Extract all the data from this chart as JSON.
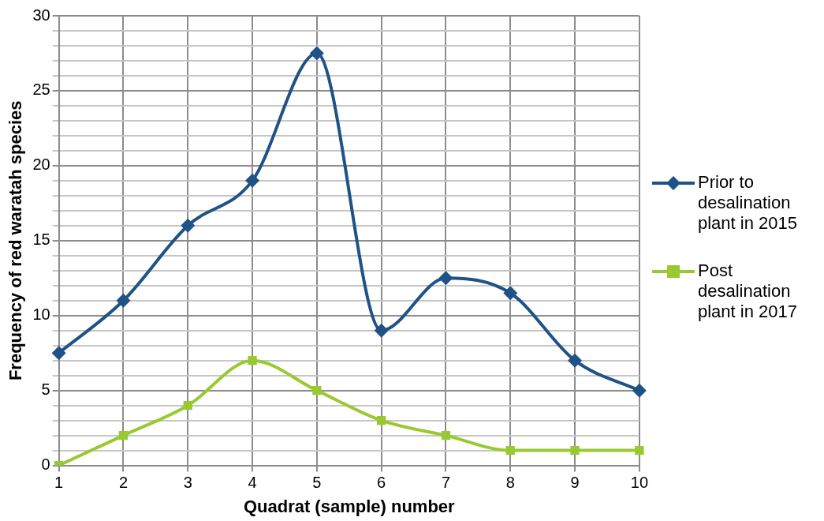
{
  "chart_data": {
    "type": "line",
    "xlabel": "Quadrat (sample) number",
    "ylabel": "Frequency of red waratah species",
    "categories": [
      "1",
      "2",
      "3",
      "4",
      "5",
      "6",
      "7",
      "8",
      "9",
      "10"
    ],
    "series": [
      {
        "name": "Prior to desalination plant in 2015",
        "color": "#1f5286",
        "marker": "diamond",
        "values": [
          7.5,
          11,
          16,
          19,
          27.5,
          9,
          12.5,
          11.5,
          7,
          5
        ]
      },
      {
        "name": "Post desalination plant in 2017",
        "color": "#99c931",
        "marker": "square",
        "values": [
          0,
          2,
          4,
          7,
          5,
          3,
          2,
          1,
          1,
          1
        ]
      }
    ],
    "ylim": [
      0,
      30
    ],
    "yticks": [
      0,
      {
        "value": 1,
        "label": null
      },
      {
        "value": 2,
        "label": null
      },
      {
        "value": 3,
        "label": null
      },
      {
        "value": 4,
        "label": null
      },
      5,
      {
        "value": 6,
        "label": null
      },
      {
        "value": 7,
        "label": null
      },
      {
        "value": 8,
        "label": null
      },
      {
        "value": 9,
        "label": null
      },
      10,
      {
        "value": 11,
        "label": null
      },
      {
        "value": 12,
        "label": null
      },
      {
        "value": 13,
        "label": null
      },
      {
        "value": 14,
        "label": null
      },
      15,
      {
        "value": 16,
        "label": null
      },
      {
        "value": 17,
        "label": null
      },
      {
        "value": 18,
        "label": null
      },
      {
        "value": 19,
        "label": null
      },
      20,
      {
        "value": 21,
        "label": null
      },
      {
        "value": 22,
        "label": null
      },
      {
        "value": 23,
        "label": null
      },
      {
        "value": 24,
        "label": null
      },
      25,
      {
        "value": 26,
        "label": null
      },
      {
        "value": 27,
        "label": null
      },
      {
        "value": 28,
        "label": null
      },
      {
        "value": 29,
        "label": null
      },
      30
    ],
    "grid": true,
    "legend": "right",
    "line_style": "solid"
  }
}
